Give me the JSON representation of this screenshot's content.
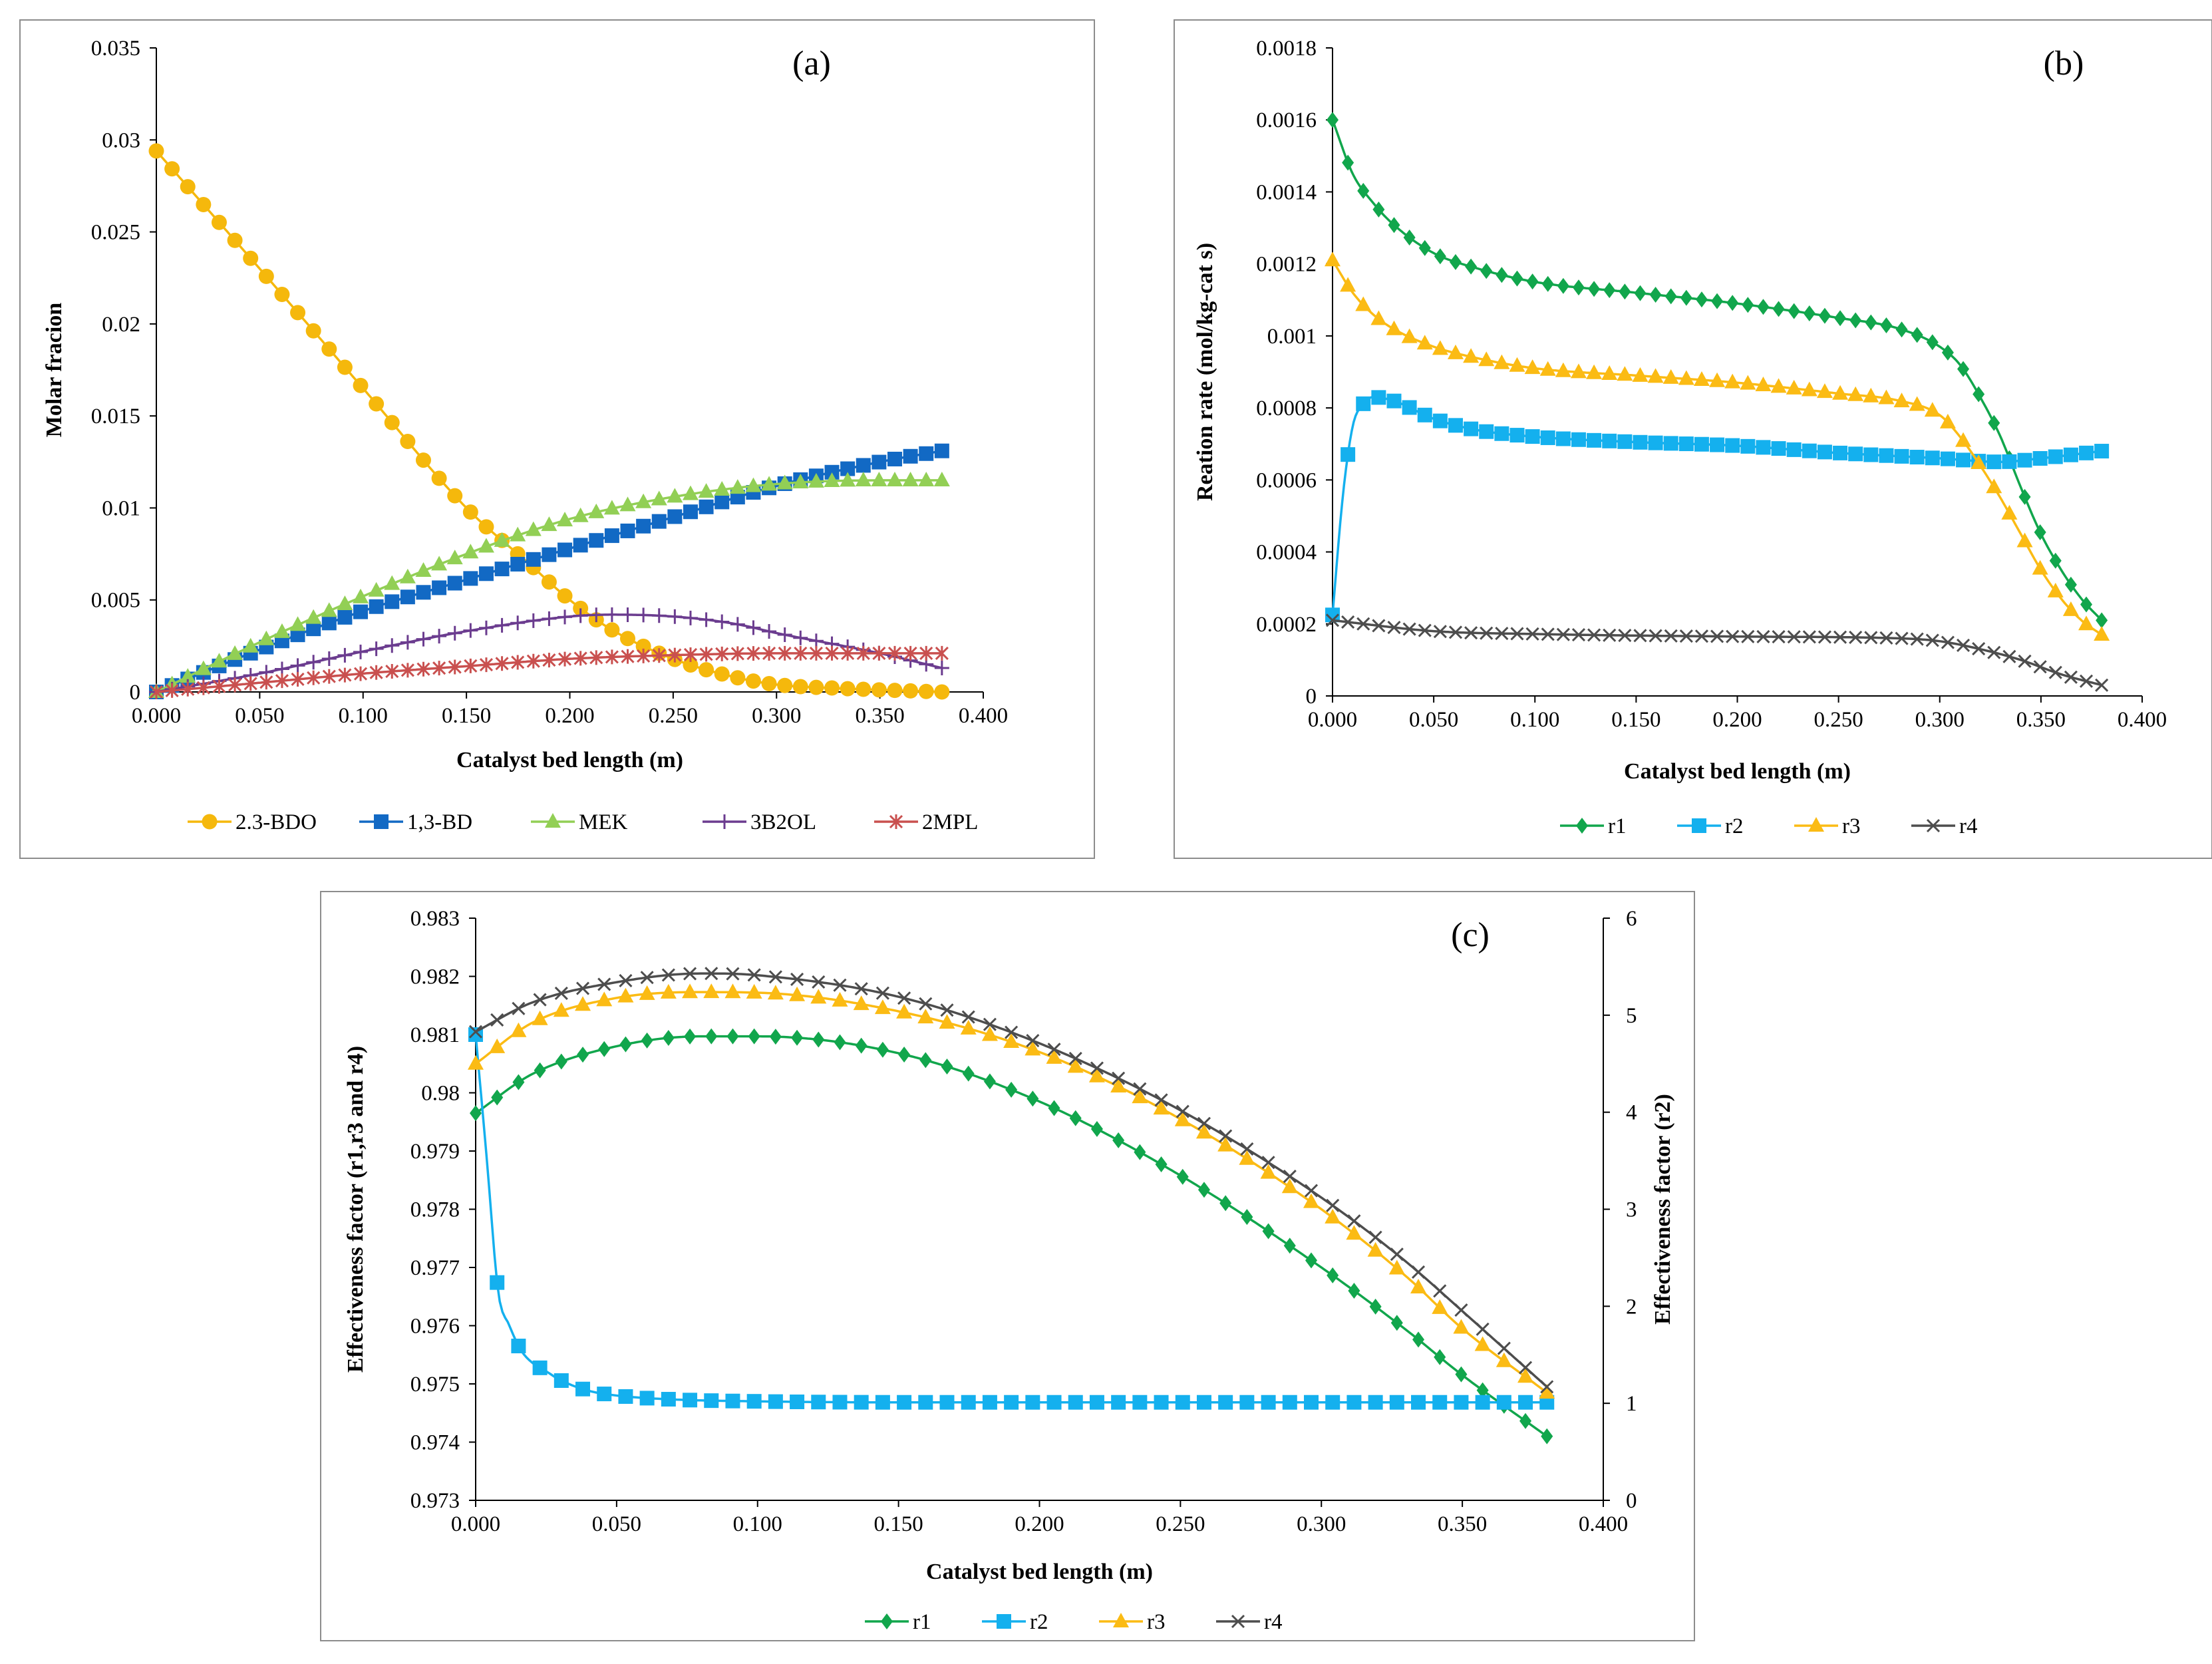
{
  "figure": {
    "colors": {
      "c2_3_BDO": "#F5B80C",
      "c1_3_BD": "#1269C4",
      "MEK": "#92CF55",
      "c3B2OL": "#6B3C8F",
      "c2MPL": "#C9504F",
      "r1": "#11A64C",
      "r2": "#14B0EE",
      "r3": "#FBBB14",
      "r4": "#4D4D4D"
    }
  },
  "chart_data": [
    {
      "id": "a",
      "type": "line",
      "panel_label": "(a)",
      "title": "",
      "xlabel": "Catalyst bed length (m)",
      "ylabel": "Molar fracion",
      "xlim": [
        0,
        0.4
      ],
      "ylim": [
        0,
        0.035
      ],
      "x_ticks": [
        "0.000",
        "0.050",
        "0.100",
        "0.150",
        "0.200",
        "0.250",
        "0.300",
        "0.350",
        "0.400"
      ],
      "y_ticks": [
        "0",
        "0.005",
        "0.01",
        "0.015",
        "0.02",
        "0.025",
        "0.03",
        "0.035"
      ],
      "grid": false,
      "legend": "bottom",
      "x_start": 0,
      "x_end": 0.38,
      "n_points": 51,
      "series": [
        {
          "name": "2.3-BDO",
          "color": "#F5B80C",
          "marker": "circle",
          "points": [
            [
              0,
              0.0294
            ],
            [
              0.05,
              0.023
            ],
            [
              0.1,
              0.0165
            ],
            [
              0.15,
              0.01
            ],
            [
              0.18,
              0.007
            ],
            [
              0.2,
              0.005
            ],
            [
              0.22,
              0.0034
            ],
            [
              0.25,
              0.0018
            ],
            [
              0.28,
              0.0008
            ],
            [
              0.3,
              0.0004
            ],
            [
              0.33,
              0.0002
            ],
            [
              0.38,
              0.0
            ]
          ]
        },
        {
          "name": "1,3-BD",
          "color": "#1269C4",
          "marker": "square",
          "points": [
            [
              0,
              0
            ],
            [
              0.05,
              0.0023
            ],
            [
              0.1,
              0.0044
            ],
            [
              0.15,
              0.0061
            ],
            [
              0.2,
              0.0078
            ],
            [
              0.25,
              0.0095
            ],
            [
              0.3,
              0.0112
            ],
            [
              0.35,
              0.0125
            ],
            [
              0.38,
              0.0131
            ]
          ]
        },
        {
          "name": "MEK",
          "color": "#92CF55",
          "marker": "triangle",
          "points": [
            [
              0,
              0
            ],
            [
              0.05,
              0.0027
            ],
            [
              0.1,
              0.0052
            ],
            [
              0.15,
              0.0075
            ],
            [
              0.2,
              0.0094
            ],
            [
              0.25,
              0.0106
            ],
            [
              0.3,
              0.0113
            ],
            [
              0.35,
              0.0115
            ],
            [
              0.38,
              0.0115
            ]
          ]
        },
        {
          "name": "3B2OL",
          "color": "#6B3C8F",
          "marker": "plus",
          "points": [
            [
              0,
              0
            ],
            [
              0.05,
              0.001
            ],
            [
              0.1,
              0.0022
            ],
            [
              0.15,
              0.0033
            ],
            [
              0.2,
              0.0041
            ],
            [
              0.22,
              0.0042
            ],
            [
              0.25,
              0.0041
            ],
            [
              0.28,
              0.0037
            ],
            [
              0.3,
              0.0032
            ],
            [
              0.35,
              0.0021
            ],
            [
              0.38,
              0.0013
            ]
          ]
        },
        {
          "name": "2MPL",
          "color": "#C9504F",
          "marker": "star",
          "points": [
            [
              0,
              0
            ],
            [
              0.05,
              0.0005
            ],
            [
              0.1,
              0.001
            ],
            [
              0.15,
              0.0014
            ],
            [
              0.2,
              0.0018
            ],
            [
              0.25,
              0.002
            ],
            [
              0.3,
              0.0021
            ],
            [
              0.35,
              0.0021
            ],
            [
              0.38,
              0.0021
            ]
          ]
        }
      ]
    },
    {
      "id": "b",
      "type": "line",
      "panel_label": "(b)",
      "title": "",
      "xlabel": "Catalyst bed length (m)",
      "ylabel": "Reation rate (mol/kg-cat s)",
      "xlim": [
        0,
        0.4
      ],
      "ylim": [
        0,
        0.0018
      ],
      "x_ticks": [
        "0.000",
        "0.050",
        "0.100",
        "0.150",
        "0.200",
        "0.250",
        "0.300",
        "0.350",
        "0.400"
      ],
      "y_ticks": [
        "0",
        "0.0002",
        "0.0004",
        "0.0006",
        "0.0008",
        "0.001",
        "0.0012",
        "0.0014",
        "0.0016",
        "0.0018"
      ],
      "grid": false,
      "legend": "bottom",
      "x_start": 0,
      "x_end": 0.38,
      "n_points": 51,
      "series": [
        {
          "name": "r1",
          "color": "#11A64C",
          "marker": "diamond",
          "points": [
            [
              0,
              0.0016
            ],
            [
              0.01,
              0.00145
            ],
            [
              0.02,
              0.00137
            ],
            [
              0.03,
              0.00131
            ],
            [
              0.05,
              0.00123
            ],
            [
              0.07,
              0.00119
            ],
            [
              0.1,
              0.00115
            ],
            [
              0.15,
              0.00112
            ],
            [
              0.2,
              0.00109
            ],
            [
              0.25,
              0.00105
            ],
            [
              0.28,
              0.00102
            ],
            [
              0.3,
              0.00097
            ],
            [
              0.31,
              0.00092
            ],
            [
              0.32,
              0.00083
            ],
            [
              0.33,
              0.00072
            ],
            [
              0.34,
              0.00058
            ],
            [
              0.35,
              0.00045
            ],
            [
              0.36,
              0.00035
            ],
            [
              0.37,
              0.00027
            ],
            [
              0.38,
              0.00021
            ]
          ]
        },
        {
          "name": "r2",
          "color": "#14B0EE",
          "marker": "square",
          "points": [
            [
              0,
              0.000225
            ],
            [
              0.005,
              0.00055
            ],
            [
              0.01,
              0.00075
            ],
            [
              0.015,
              0.00081
            ],
            [
              0.02,
              0.00083
            ],
            [
              0.03,
              0.00082
            ],
            [
              0.05,
              0.00077
            ],
            [
              0.07,
              0.00074
            ],
            [
              0.1,
              0.00072
            ],
            [
              0.15,
              0.000705
            ],
            [
              0.2,
              0.000695
            ],
            [
              0.25,
              0.000675
            ],
            [
              0.3,
              0.00066
            ],
            [
              0.33,
              0.00065
            ],
            [
              0.35,
              0.00066
            ],
            [
              0.38,
              0.00068
            ]
          ]
        },
        {
          "name": "r3",
          "color": "#FBBB14",
          "marker": "triangle",
          "points": [
            [
              0,
              0.00121
            ],
            [
              0.01,
              0.00112
            ],
            [
              0.02,
              0.00106
            ],
            [
              0.03,
              0.00102
            ],
            [
              0.05,
              0.00097
            ],
            [
              0.07,
              0.00094
            ],
            [
              0.1,
              0.00091
            ],
            [
              0.15,
              0.00089
            ],
            [
              0.2,
              0.00087
            ],
            [
              0.25,
              0.00084
            ],
            [
              0.28,
              0.00082
            ],
            [
              0.3,
              0.00078
            ],
            [
              0.31,
              0.00072
            ],
            [
              0.32,
              0.00064
            ],
            [
              0.33,
              0.00055
            ],
            [
              0.34,
              0.00045
            ],
            [
              0.35,
              0.00035
            ],
            [
              0.36,
              0.00027
            ],
            [
              0.37,
              0.00021
            ],
            [
              0.38,
              0.00017
            ]
          ]
        },
        {
          "name": "r4",
          "color": "#4D4D4D",
          "marker": "x",
          "points": [
            [
              0,
              0.00021
            ],
            [
              0.05,
              0.00018
            ],
            [
              0.1,
              0.000172
            ],
            [
              0.2,
              0.000165
            ],
            [
              0.28,
              0.00016
            ],
            [
              0.3,
              0.000152
            ],
            [
              0.32,
              0.00013
            ],
            [
              0.34,
              0.0001
            ],
            [
              0.36,
              6e-05
            ],
            [
              0.38,
              3e-05
            ]
          ]
        }
      ]
    },
    {
      "id": "c",
      "type": "line",
      "panel_label": "(c)",
      "title": "",
      "xlabel": "Catalyst bed length (m)",
      "ylabel": "Effectiveness factor (r1,r3 and r4)",
      "y2label": "Effectiveness factor (r2)",
      "xlim": [
        0,
        0.4
      ],
      "ylim": [
        0.973,
        0.983
      ],
      "y2lim": [
        0,
        6
      ],
      "x_ticks": [
        "0.000",
        "0.050",
        "0.100",
        "0.150",
        "0.200",
        "0.250",
        "0.300",
        "0.350",
        "0.400"
      ],
      "y_ticks": [
        "0.973",
        "0.974",
        "0.975",
        "0.976",
        "0.977",
        "0.978",
        "0.979",
        "0.98",
        "0.981",
        "0.982",
        "0.983"
      ],
      "y2_ticks": [
        "0",
        "1",
        "2",
        "3",
        "4",
        "5",
        "6"
      ],
      "grid": false,
      "legend": "bottom",
      "x_start": 0,
      "x_end": 0.38,
      "n_points": 51,
      "series": [
        {
          "name": "r1",
          "color": "#11A64C",
          "marker": "diamond",
          "axis": "left",
          "points": [
            [
              0,
              0.97965
            ],
            [
              0.02,
              0.98032
            ],
            [
              0.05,
              0.9808
            ],
            [
              0.08,
              0.98097
            ],
            [
              0.1,
              0.98097
            ],
            [
              0.15,
              0.98068
            ],
            [
              0.2,
              0.97985
            ],
            [
              0.25,
              0.97858
            ],
            [
              0.3,
              0.977
            ],
            [
              0.33,
              0.97593
            ],
            [
              0.35,
              0.97515
            ],
            [
              0.38,
              0.9741
            ]
          ]
        },
        {
          "name": "r2",
          "color": "#14B0EE",
          "marker": "square",
          "axis": "right",
          "points": [
            [
              0,
              4.8
            ],
            [
              0.004,
              3.5
            ],
            [
              0.008,
              2.15
            ],
            [
              0.012,
              1.8
            ],
            [
              0.016,
              1.55
            ],
            [
              0.02,
              1.42
            ],
            [
              0.025,
              1.33
            ],
            [
              0.03,
              1.24
            ],
            [
              0.04,
              1.13
            ],
            [
              0.05,
              1.08
            ],
            [
              0.07,
              1.04
            ],
            [
              0.1,
              1.02
            ],
            [
              0.15,
              1.01
            ],
            [
              0.38,
              1.01
            ]
          ]
        },
        {
          "name": "r3",
          "color": "#FBBB14",
          "marker": "triangle",
          "axis": "left",
          "points": [
            [
              0,
              0.9805
            ],
            [
              0.02,
              0.9812
            ],
            [
              0.05,
              0.98163
            ],
            [
              0.08,
              0.98173
            ],
            [
              0.1,
              0.98172
            ],
            [
              0.15,
              0.9814
            ],
            [
              0.2,
              0.9807
            ],
            [
              0.25,
              0.97955
            ],
            [
              0.3,
              0.978
            ],
            [
              0.33,
              0.97685
            ],
            [
              0.35,
              0.97595
            ],
            [
              0.38,
              0.97485
            ]
          ]
        },
        {
          "name": "r4",
          "color": "#4D4D4D",
          "marker": "x",
          "axis": "left",
          "points": [
            [
              0,
              0.98105
            ],
            [
              0.02,
              0.98155
            ],
            [
              0.05,
              0.9819
            ],
            [
              0.08,
              0.98205
            ],
            [
              0.1,
              0.98202
            ],
            [
              0.15,
              0.98165
            ],
            [
              0.2,
              0.98085
            ],
            [
              0.25,
              0.9797
            ],
            [
              0.3,
              0.9782
            ],
            [
              0.33,
              0.9771
            ],
            [
              0.35,
              0.97625
            ],
            [
              0.38,
              0.97495
            ]
          ]
        }
      ]
    }
  ]
}
